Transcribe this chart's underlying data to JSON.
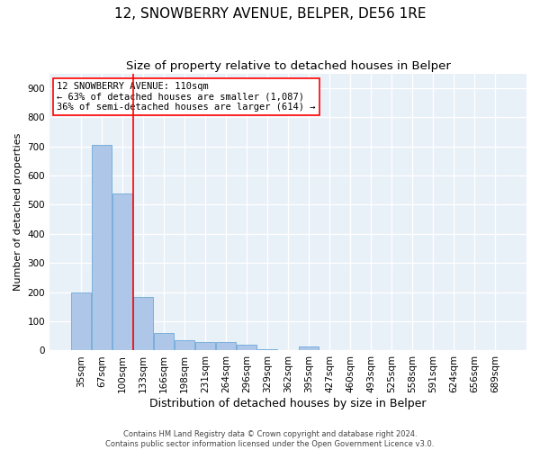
{
  "title": "12, SNOWBERRY AVENUE, BELPER, DE56 1RE",
  "subtitle": "Size of property relative to detached houses in Belper",
  "xlabel": "Distribution of detached houses by size in Belper",
  "ylabel": "Number of detached properties",
  "footer_line1": "Contains HM Land Registry data © Crown copyright and database right 2024.",
  "footer_line2": "Contains public sector information licensed under the Open Government Licence v3.0.",
  "categories": [
    "35sqm",
    "67sqm",
    "100sqm",
    "133sqm",
    "166sqm",
    "198sqm",
    "231sqm",
    "264sqm",
    "296sqm",
    "329sqm",
    "362sqm",
    "395sqm",
    "427sqm",
    "460sqm",
    "493sqm",
    "525sqm",
    "558sqm",
    "591sqm",
    "624sqm",
    "656sqm",
    "689sqm"
  ],
  "values": [
    200,
    705,
    540,
    185,
    60,
    35,
    30,
    30,
    20,
    5,
    0,
    14,
    0,
    0,
    0,
    0,
    0,
    0,
    0,
    0,
    0
  ],
  "bar_color": "#aec6e8",
  "bar_edge_color": "#5a9fd4",
  "vline_x_index": 2.5,
  "vline_color": "red",
  "annotation_text": "12 SNOWBERRY AVENUE: 110sqm\n← 63% of detached houses are smaller (1,087)\n36% of semi-detached houses are larger (614) →",
  "annotation_box_color": "white",
  "annotation_box_edge_color": "red",
  "ylim": [
    0,
    950
  ],
  "yticks": [
    0,
    100,
    200,
    300,
    400,
    500,
    600,
    700,
    800,
    900
  ],
  "background_color": "#e8f0f8",
  "grid_color": "white",
  "title_fontsize": 11,
  "subtitle_fontsize": 9.5,
  "xlabel_fontsize": 9,
  "ylabel_fontsize": 8,
  "tick_fontsize": 7.5,
  "annotation_fontsize": 7.5,
  "footer_fontsize": 6
}
